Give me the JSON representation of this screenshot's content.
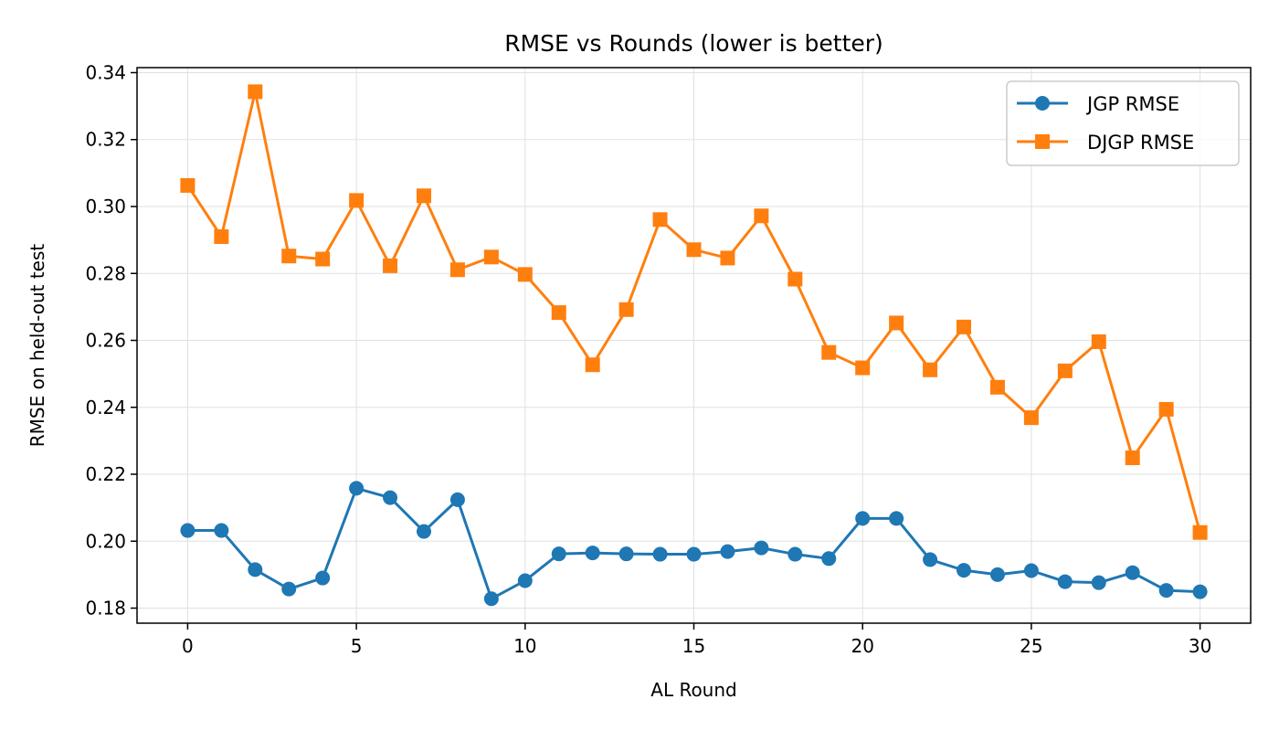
{
  "chart_data": {
    "type": "line",
    "title": "RMSE vs Rounds (lower is better)",
    "xlabel": "AL Round",
    "ylabel": "RMSE on held-out test",
    "xlim": [
      -1.5,
      31.5
    ],
    "ylim": [
      0.1755,
      0.3415
    ],
    "xticks": [
      0,
      5,
      10,
      15,
      20,
      25,
      30
    ],
    "xtick_labels": [
      "0",
      "5",
      "10",
      "15",
      "20",
      "25",
      "30"
    ],
    "yticks": [
      0.18,
      0.2,
      0.22,
      0.24,
      0.26,
      0.28,
      0.3,
      0.32,
      0.34
    ],
    "ytick_labels": [
      "0.18",
      "0.20",
      "0.22",
      "0.24",
      "0.26",
      "0.28",
      "0.30",
      "0.32",
      "0.34"
    ],
    "grid": true,
    "legend_position": "top-right",
    "x": [
      0,
      1,
      2,
      3,
      4,
      5,
      6,
      7,
      8,
      9,
      10,
      11,
      12,
      13,
      14,
      15,
      16,
      17,
      18,
      19,
      20,
      21,
      22,
      23,
      24,
      25,
      26,
      27,
      28,
      29,
      30
    ],
    "series": [
      {
        "name": "JGP RMSE",
        "color": "#1f77b4",
        "marker": "circle",
        "values": [
          0.2032,
          0.2032,
          0.1915,
          0.1857,
          0.189,
          0.2158,
          0.213,
          0.2029,
          0.2124,
          0.1828,
          0.1882,
          0.1962,
          0.1965,
          0.1962,
          0.1961,
          0.1961,
          0.1969,
          0.198,
          0.1961,
          0.1948,
          0.2068,
          0.2068,
          0.1945,
          0.1913,
          0.19,
          0.1912,
          0.1879,
          0.1876,
          0.1906,
          0.1853,
          0.1849
        ]
      },
      {
        "name": "DJGP RMSE",
        "color": "#ff7f0e",
        "marker": "square",
        "values": [
          0.3063,
          0.291,
          0.3343,
          0.2852,
          0.2843,
          0.3018,
          0.2823,
          0.3032,
          0.2811,
          0.2849,
          0.2797,
          0.2683,
          0.2527,
          0.2692,
          0.2961,
          0.2871,
          0.2846,
          0.2972,
          0.2783,
          0.2564,
          0.2518,
          0.2652,
          0.2512,
          0.264,
          0.246,
          0.2369,
          0.2509,
          0.2596,
          0.2249,
          0.2394,
          0.2026
        ]
      }
    ]
  }
}
